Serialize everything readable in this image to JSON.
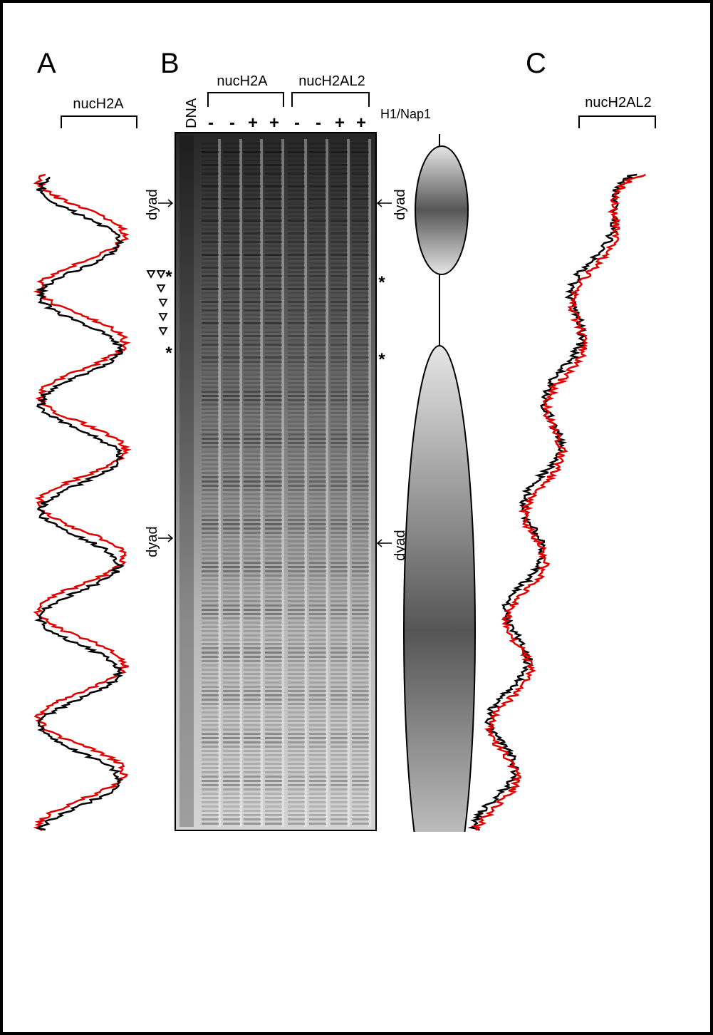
{
  "panel_a": {
    "label": "A",
    "bracket_label": "nucH2A"
  },
  "panel_b": {
    "label": "B",
    "dna_lane": "DNA",
    "groups": [
      "nucH2A",
      "nucH2AL2"
    ],
    "condition": "H1/Nap1",
    "lane_signs": [
      "-",
      "-",
      "+",
      "+",
      "-",
      "-",
      "+",
      "+"
    ],
    "left_dyads": [
      "dyad",
      "dyad"
    ],
    "right_dyads": [
      "dyad",
      "dyad"
    ],
    "left_asterisks": [
      "*",
      "*"
    ],
    "right_asterisks": [
      "*",
      "*"
    ]
  },
  "panel_c": {
    "label": "C",
    "bracket_label": "nucH2AL2"
  }
}
